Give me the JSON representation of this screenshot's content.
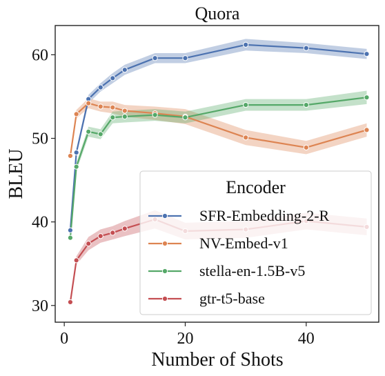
{
  "chart_data": {
    "type": "line",
    "title": "Quora",
    "xlabel": "Number of Shots",
    "ylabel": "BLEU",
    "xlim": [
      -1.5,
      52
    ],
    "ylim": [
      28,
      63.5
    ],
    "xticks": [
      0,
      20,
      40
    ],
    "yticks": [
      30,
      40,
      50,
      60
    ],
    "grid": false,
    "legend": {
      "title": "Encoder",
      "placement": "lower-right"
    },
    "x": [
      1,
      2,
      4,
      6,
      8,
      10,
      15,
      20,
      30,
      40,
      50
    ],
    "series": [
      {
        "name": "SFR-Embedding-2-R",
        "color": "#4c72b0",
        "values": [
          39.0,
          48.3,
          54.7,
          56.1,
          57.2,
          58.2,
          59.6,
          59.6,
          61.2,
          60.8,
          60.1
        ],
        "band": [
          0.3,
          0.4,
          0.5,
          0.5,
          0.6,
          0.6,
          0.6,
          0.6,
          0.7,
          0.6,
          0.6
        ]
      },
      {
        "name": "NV-Embed-v1",
        "color": "#dd8452",
        "values": [
          47.9,
          52.9,
          54.2,
          53.8,
          53.7,
          53.3,
          53.0,
          52.6,
          50.1,
          48.9,
          51.0
        ],
        "band": [
          0.4,
          0.5,
          0.6,
          0.6,
          0.7,
          0.7,
          0.8,
          0.9,
          0.9,
          0.8,
          0.8
        ]
      },
      {
        "name": "stella-en-1.5B-v5",
        "color": "#55a868",
        "values": [
          38.1,
          46.6,
          50.8,
          50.5,
          52.5,
          52.6,
          52.8,
          52.5,
          54.0,
          54.0,
          54.9
        ],
        "band": [
          0.4,
          0.5,
          0.6,
          0.6,
          0.7,
          0.7,
          0.7,
          0.7,
          0.7,
          0.7,
          0.8
        ]
      },
      {
        "name": "gtr-t5-base",
        "color": "#c44e52",
        "values": [
          30.4,
          35.4,
          37.4,
          38.3,
          38.7,
          39.2,
          40.3,
          38.9,
          39.1,
          40.1,
          39.4
        ],
        "band": [
          0.3,
          0.5,
          0.8,
          0.8,
          0.8,
          0.9,
          1.1,
          1.0,
          1.0,
          1.0,
          1.0
        ]
      }
    ]
  }
}
